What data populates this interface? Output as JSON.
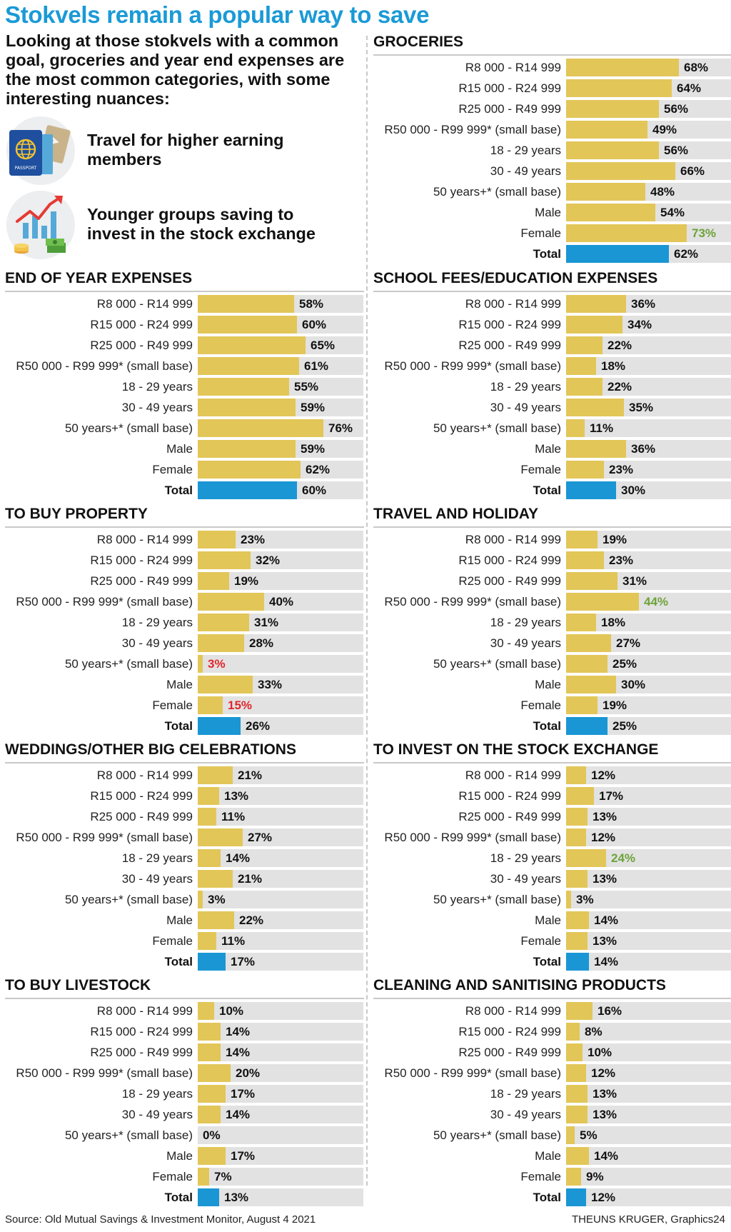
{
  "title": "Stokvels remain a popular way to save",
  "intro": "Looking at those stokvels with a common goal, groceries and year end expenses are the most common categories, with some interesting nuances:",
  "callouts": [
    {
      "text": "Travel for higher earning members",
      "icon": "passport-icon",
      "icon_caption": "PASSPORT"
    },
    {
      "text": "Younger groups saving to invest in the stock exchange",
      "icon": "stock-growth-icon"
    }
  ],
  "source": "Source: Old Mutual Savings & Investment Monitor, August 4 2021",
  "credit": "THEUNS KRUGER, Graphics24",
  "colors": {
    "title": "#1a9ad6",
    "bar": "#e2c658",
    "total_bar": "#1a96d4",
    "track": "#e2e2e2",
    "highlight_high": "#6da33a",
    "highlight_low": "#e0262c"
  },
  "chart_data": [
    {
      "type": "bar",
      "title": "GROCERIES",
      "categories": [
        "R8 000 - R14 999",
        "R15 000 - R24 999",
        "R25 000 - R49 999",
        "R50 000 - R99 999* (small base)",
        "18 - 29 years",
        "30 - 49 years",
        "50 years+* (small base)",
        "Male",
        "Female",
        "Total"
      ],
      "values": [
        68,
        64,
        56,
        49,
        56,
        66,
        48,
        54,
        73,
        62
      ],
      "highlights": {
        "8": "high"
      },
      "xlim": [
        0,
        100
      ]
    },
    {
      "type": "bar",
      "title": "END OF YEAR EXPENSES",
      "categories": [
        "R8 000 - R14 999",
        "R15 000 - R24 999",
        "R25 000 - R49 999",
        "R50 000 - R99 999* (small base)",
        "18 - 29 years",
        "30 - 49 years",
        "50 years+* (small base)",
        "Male",
        "Female",
        "Total"
      ],
      "values": [
        58,
        60,
        65,
        61,
        55,
        59,
        76,
        59,
        62,
        60
      ],
      "highlights": {},
      "xlim": [
        0,
        100
      ]
    },
    {
      "type": "bar",
      "title": "SCHOOL FEES/EDUCATION EXPENSES",
      "categories": [
        "R8 000 - R14 999",
        "R15 000 - R24 999",
        "R25 000 - R49 999",
        "R50 000 - R99 999* (small base)",
        "18 - 29 years",
        "30 - 49 years",
        "50 years+* (small base)",
        "Male",
        "Female",
        "Total"
      ],
      "values": [
        36,
        34,
        22,
        18,
        22,
        35,
        11,
        36,
        23,
        30
      ],
      "highlights": {},
      "xlim": [
        0,
        100
      ]
    },
    {
      "type": "bar",
      "title": "TO BUY PROPERTY",
      "categories": [
        "R8 000 - R14 999",
        "R15 000 - R24 999",
        "R25 000 - R49 999",
        "R50 000 - R99 999* (small base)",
        "18 - 29 years",
        "30 - 49 years",
        "50 years+* (small base)",
        "Male",
        "Female",
        "Total"
      ],
      "values": [
        23,
        32,
        19,
        40,
        31,
        28,
        3,
        33,
        15,
        26
      ],
      "highlights": {
        "6": "low",
        "8": "low"
      },
      "xlim": [
        0,
        100
      ]
    },
    {
      "type": "bar",
      "title": "TRAVEL AND HOLIDAY",
      "categories": [
        "R8 000 - R14 999",
        "R15 000 - R24 999",
        "R25 000 - R49 999",
        "R50 000 - R99 999* (small base)",
        "18 - 29 years",
        "30 - 49 years",
        "50 years+* (small base)",
        "Male",
        "Female",
        "Total"
      ],
      "values": [
        19,
        23,
        31,
        44,
        18,
        27,
        25,
        30,
        19,
        25
      ],
      "highlights": {
        "3": "high"
      },
      "xlim": [
        0,
        100
      ]
    },
    {
      "type": "bar",
      "title": "WEDDINGS/OTHER BIG CELEBRATIONS",
      "categories": [
        "R8 000 - R14 999",
        "R15 000 - R24 999",
        "R25 000 - R49 999",
        "R50 000 - R99 999* (small base)",
        "18 - 29 years",
        "30 - 49 years",
        "50 years+* (small base)",
        "Male",
        "Female",
        "Total"
      ],
      "values": [
        21,
        13,
        11,
        27,
        14,
        21,
        3,
        22,
        11,
        17
      ],
      "highlights": {},
      "xlim": [
        0,
        100
      ]
    },
    {
      "type": "bar",
      "title": "TO INVEST ON THE STOCK EXCHANGE",
      "categories": [
        "R8 000 - R14 999",
        "R15 000 - R24 999",
        "R25 000 - R49 999",
        "R50 000 - R99 999* (small base)",
        "18 - 29 years",
        "30 - 49 years",
        "50 years+* (small base)",
        "Male",
        "Female",
        "Total"
      ],
      "values": [
        12,
        17,
        13,
        12,
        24,
        13,
        3,
        14,
        13,
        14
      ],
      "highlights": {
        "4": "high"
      },
      "xlim": [
        0,
        100
      ]
    },
    {
      "type": "bar",
      "title": "TO BUY LIVESTOCK",
      "categories": [
        "R8 000 - R14 999",
        "R15 000 - R24 999",
        "R25 000 - R49 999",
        "R50 000 - R99 999* (small base)",
        "18 - 29 years",
        "30 - 49 years",
        "50 years+* (small base)",
        "Male",
        "Female",
        "Total"
      ],
      "values": [
        10,
        14,
        14,
        20,
        17,
        14,
        0,
        17,
        7,
        13
      ],
      "highlights": {},
      "xlim": [
        0,
        100
      ]
    },
    {
      "type": "bar",
      "title": "CLEANING AND SANITISING PRODUCTS",
      "categories": [
        "R8 000 - R14 999",
        "R15 000 - R24 999",
        "R25 000 - R49 999",
        "R50 000 - R99 999* (small base)",
        "18 - 29 years",
        "30 - 49 years",
        "50 years+* (small base)",
        "Male",
        "Female",
        "Total"
      ],
      "values": [
        16,
        8,
        10,
        12,
        13,
        13,
        5,
        14,
        9,
        12
      ],
      "highlights": {},
      "xlim": [
        0,
        100
      ]
    }
  ]
}
